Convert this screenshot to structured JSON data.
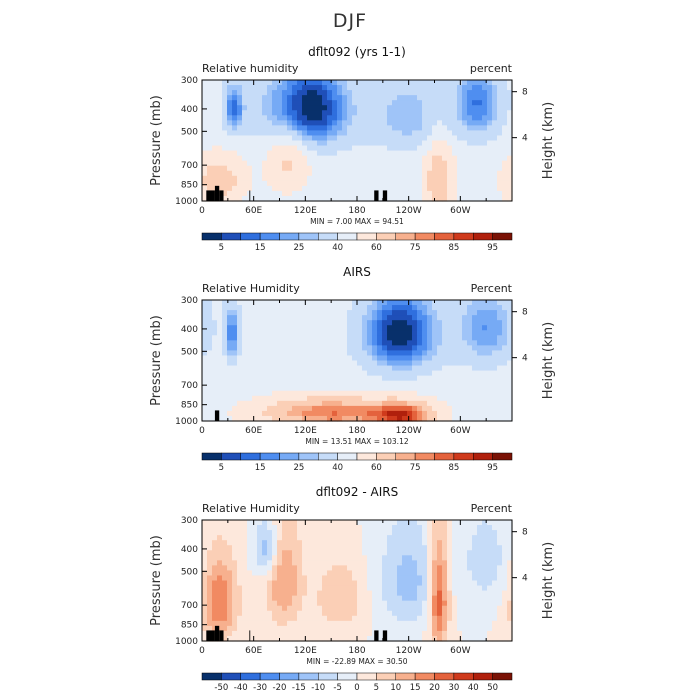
{
  "figure_title": "DJF",
  "chart_data": [
    {
      "type": "heatmap",
      "title": "dflt092 (yrs 1-1)",
      "left_label": "Relative humidity",
      "right_label": "percent",
      "ylabel": "Pressure (mb)",
      "ylabel_right": "Height (km)",
      "y_ticks": [
        "300",
        "400",
        "500",
        "700",
        "850",
        "1000"
      ],
      "y_right_ticks": [
        "8",
        "4"
      ],
      "x_ticks": [
        "0",
        "60E",
        "120E",
        "180",
        "120W",
        "60W"
      ],
      "stats": {
        "min": "7.00",
        "max": "94.51"
      },
      "stats_text": "MIN =    7.00   MAX =   94.51",
      "colorbar_labels": [
        "5",
        "15",
        "25",
        "40",
        "60",
        "75",
        "85",
        "95"
      ],
      "colorbar_levels": [
        5,
        10,
        15,
        20,
        25,
        30,
        40,
        50,
        60,
        70,
        75,
        80,
        85,
        90,
        95
      ],
      "fields": [
        {
          "lon": 120,
          "p": 400,
          "sx": 35,
          "sp": 120,
          "amp": -50
        },
        {
          "lon": 37,
          "p": 400,
          "sx": 8,
          "sp": 70,
          "amp": -30
        },
        {
          "lon": 320,
          "p": 380,
          "sx": 20,
          "sp": 100,
          "amp": -30
        },
        {
          "lon": 240,
          "p": 430,
          "sx": 30,
          "sp": 110,
          "amp": -20
        },
        {
          "lon": 20,
          "p": 820,
          "sx": 22,
          "sp": 140,
          "amp": 22
        },
        {
          "lon": 275,
          "p": 820,
          "sx": 12,
          "sp": 220,
          "amp": 25
        },
        {
          "lon": 100,
          "p": 600,
          "sx": 18,
          "sp": 200,
          "amp": 20
        }
      ],
      "base": 45,
      "blocks": [
        [
          5,
          15,
          900
        ],
        [
          15,
          20,
          860
        ],
        [
          20,
          25,
          900
        ],
        [
          55,
          56,
          900
        ],
        [
          200,
          205,
          900
        ],
        [
          210,
          215,
          900
        ]
      ]
    },
    {
      "type": "heatmap",
      "title": "AIRS",
      "left_label": "Relative Humidity",
      "right_label": "Percent",
      "ylabel": "Pressure (mb)",
      "ylabel_right": "Height (km)",
      "y_ticks": [
        "300",
        "400",
        "500",
        "700",
        "850",
        "1000"
      ],
      "y_right_ticks": [
        "8",
        "4"
      ],
      "x_ticks": [
        "0",
        "60E",
        "120E",
        "180",
        "120W",
        "60W"
      ],
      "stats": {
        "min": "13.51",
        "max": "103.12"
      },
      "stats_text": "MIN =   13.51   MAX =  103.12",
      "colorbar_labels": [
        "5",
        "15",
        "25",
        "40",
        "60",
        "75",
        "85",
        "95"
      ],
      "colorbar_levels": [
        5,
        10,
        15,
        20,
        25,
        30,
        40,
        50,
        60,
        70,
        75,
        80,
        85,
        90,
        95
      ],
      "fields": [
        {
          "lon": 230,
          "p": 420,
          "sx": 30,
          "sp": 120,
          "amp": -45
        },
        {
          "lon": 35,
          "p": 420,
          "sx": 6,
          "sp": 80,
          "amp": -30
        },
        {
          "lon": 330,
          "p": 400,
          "sx": 25,
          "sp": 110,
          "amp": -25
        },
        {
          "lon": 150,
          "p": 920,
          "sx": 60,
          "sp": 100,
          "amp": 35
        },
        {
          "lon": 235,
          "p": 950,
          "sx": 25,
          "sp": 90,
          "amp": 35
        }
      ],
      "base": 45,
      "blocks": [
        [
          15,
          20,
          900
        ]
      ]
    },
    {
      "type": "heatmap",
      "title": "dflt092 - AIRS",
      "left_label": "Relative Humidity",
      "right_label": "Percent",
      "ylabel": "Pressure (mb)",
      "ylabel_right": "Height (km)",
      "y_ticks": [
        "300",
        "400",
        "500",
        "700",
        "850",
        "1000"
      ],
      "y_right_ticks": [
        "8",
        "4"
      ],
      "x_ticks": [
        "0",
        "60E",
        "120E",
        "180",
        "120W",
        "60W"
      ],
      "stats": {
        "min": "-22.89",
        "max": "30.50"
      },
      "stats_text": "MIN =  -22.89   MAX =   30.50",
      "colorbar_labels": [
        "-50",
        "-40",
        "-30",
        "-20",
        "-15",
        "-10",
        "-5",
        "0",
        "5",
        "10",
        "15",
        "20",
        "30",
        "40",
        "50"
      ],
      "colorbar_levels": [
        -50,
        -40,
        -30,
        -20,
        -15,
        -10,
        -5,
        0,
        5,
        10,
        15,
        20,
        30,
        40,
        50
      ],
      "fields": [
        {
          "lon": 20,
          "p": 680,
          "sx": 15,
          "sp": 200,
          "amp": 20
        },
        {
          "lon": 95,
          "p": 550,
          "sx": 15,
          "sp": 200,
          "amp": 15
        },
        {
          "lon": 160,
          "p": 650,
          "sx": 20,
          "sp": 150,
          "amp": 10
        },
        {
          "lon": 75,
          "p": 400,
          "sx": 10,
          "sp": 80,
          "amp": -15
        },
        {
          "lon": 240,
          "p": 550,
          "sx": 25,
          "sp": 200,
          "amp": -12
        },
        {
          "lon": 275,
          "p": 650,
          "sx": 8,
          "sp": 250,
          "amp": 25
        },
        {
          "lon": 330,
          "p": 450,
          "sx": 20,
          "sp": 150,
          "amp": -8
        }
      ],
      "base": 0,
      "blocks": [
        [
          5,
          15,
          900
        ],
        [
          15,
          20,
          860
        ],
        [
          20,
          25,
          900
        ],
        [
          55,
          56,
          900
        ],
        [
          200,
          205,
          900
        ],
        [
          210,
          215,
          900
        ]
      ]
    }
  ]
}
